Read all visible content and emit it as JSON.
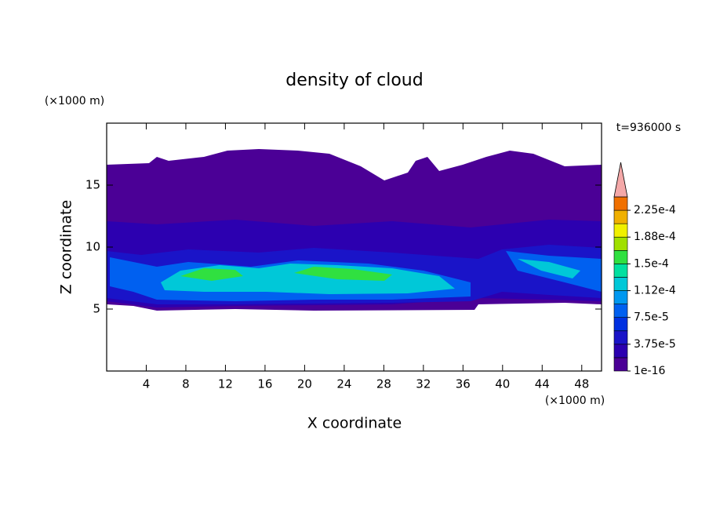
{
  "chart_data": {
    "type": "contour",
    "title": "density of cloud",
    "x_label": "X coordinate",
    "y_label": "Z coordinate",
    "x_unit": "(×1000 m)",
    "y_unit": "(×1000 m)",
    "time_label": "t=936000 s",
    "xlim": [
      0,
      50
    ],
    "xticks": [
      4,
      8,
      12,
      16,
      20,
      24,
      28,
      32,
      36,
      40,
      44,
      48
    ],
    "ylim": [
      0,
      20
    ],
    "yticks": [
      5,
      10,
      15
    ],
    "colorbar": {
      "lim": [
        0,
        0.00024375
      ],
      "ticks": [
        {
          "value": 1e-16,
          "label": "1e-16"
        },
        {
          "value": 3.75e-05,
          "label": "3.75e-5"
        },
        {
          "value": 7.5e-05,
          "label": "7.5e-5"
        },
        {
          "value": 0.0001125,
          "label": "1.12e-4"
        },
        {
          "value": 0.00015,
          "label": "1.5e-4"
        },
        {
          "value": 0.0001875,
          "label": "1.88e-4"
        },
        {
          "value": 0.000225,
          "label": "2.25e-4"
        }
      ],
      "colors": [
        "#4b0096",
        "#2c00b0",
        "#1a14c8",
        "#0030e0",
        "#0060f0",
        "#0098f0",
        "#00c8d8",
        "#00e0a0",
        "#30e040",
        "#a0e000",
        "#f0f000",
        "#f0b000",
        "#f07000",
        "#f03000"
      ],
      "extend_color": "#f4a8a8"
    }
  }
}
